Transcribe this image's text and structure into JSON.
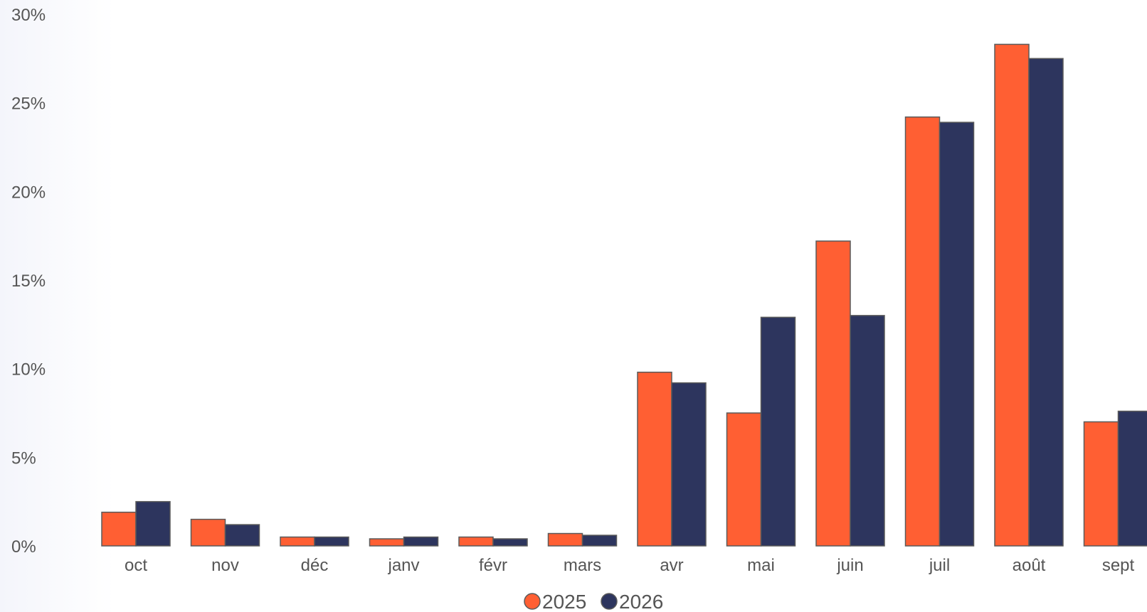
{
  "chart_data": {
    "type": "bar",
    "categories": [
      "oct",
      "nov",
      "déc",
      "janv",
      "févr",
      "mars",
      "avr",
      "mai",
      "juin",
      "juil",
      "août",
      "sept"
    ],
    "series": [
      {
        "name": "2025",
        "color": "#ff5f33",
        "values": [
          1.9,
          1.5,
          0.5,
          0.4,
          0.5,
          0.7,
          9.8,
          7.5,
          17.2,
          24.2,
          28.3,
          7.0
        ]
      },
      {
        "name": "2026",
        "color": "#2d355e",
        "values": [
          2.5,
          1.2,
          0.5,
          0.5,
          0.4,
          0.6,
          9.2,
          12.9,
          13.0,
          23.9,
          27.5,
          7.6
        ]
      }
    ],
    "ylim": [
      0,
      30
    ],
    "yticks": [
      "0%",
      "5%",
      "10%",
      "15%",
      "20%",
      "25%",
      "30%"
    ],
    "ytick_values": [
      0,
      5,
      10,
      15,
      20,
      25,
      30
    ],
    "bar_border_color": "#5a5a5a",
    "grid": false,
    "legend_position": "bottom-center"
  }
}
